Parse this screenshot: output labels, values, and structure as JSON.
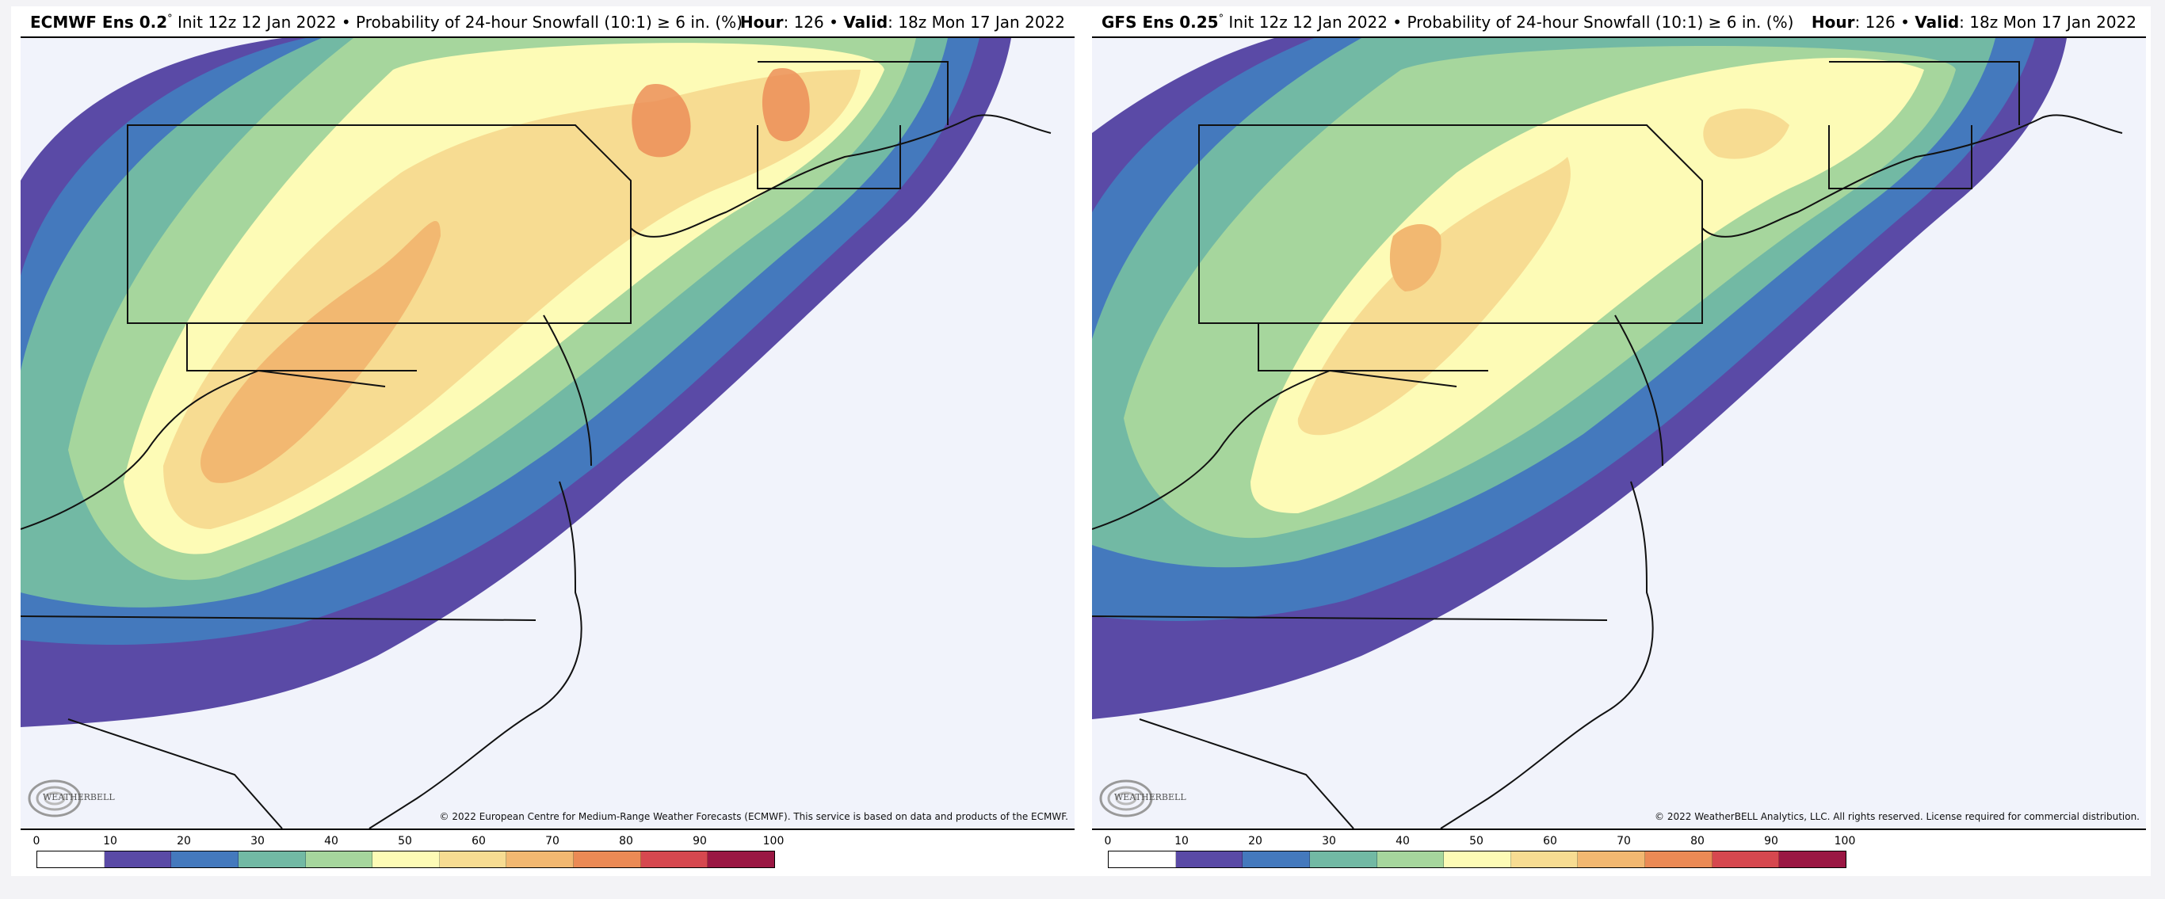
{
  "colorscale": {
    "ticks": [
      "0",
      "10",
      "20",
      "30",
      "40",
      "50",
      "60",
      "70",
      "80",
      "90",
      "100"
    ],
    "colors": [
      "#ffffff",
      "#5a4aa6",
      "#4479bd",
      "#72b9a4",
      "#a6d69d",
      "#fdfbb6",
      "#f7dc92",
      "#f2b871",
      "#eb8a55",
      "#d6484f",
      "#9a1743"
    ]
  },
  "panels": [
    {
      "id": "ecmwf",
      "model": "ECMWF Ens 0.2",
      "degree": "°",
      "init": " Init 12z 12 Jan 2022 • Probability of 24-hour Snowfall (10:1) ≥ 6 in. (%)",
      "hour_label": "Hour",
      "hour": ": 126 • ",
      "valid_label": "Valid",
      "valid": ": 18z Mon 17 Jan 2022",
      "copyright": "© 2022 European Centre for Medium-Range Weather Forecasts (ECMWF). This service is based on data and products of the ECMWF.",
      "logo_text": "WEATHERBELL"
    },
    {
      "id": "gfs",
      "model": "GFS Ens 0.25",
      "degree": "°",
      "init": " Init 12z 12 Jan 2022 • Probability of 24-hour Snowfall (10:1) ≥ 6 in. (%)",
      "hour_label": "Hour",
      "hour": ": 126 • ",
      "valid_label": "Valid",
      "valid": ": 18z Mon 17 Jan 2022",
      "copyright": "© 2022 WeatherBELL Analytics, LLC. All rights reserved. License required for commercial distribution.",
      "logo_text": "WEATHERBELL"
    }
  ]
}
